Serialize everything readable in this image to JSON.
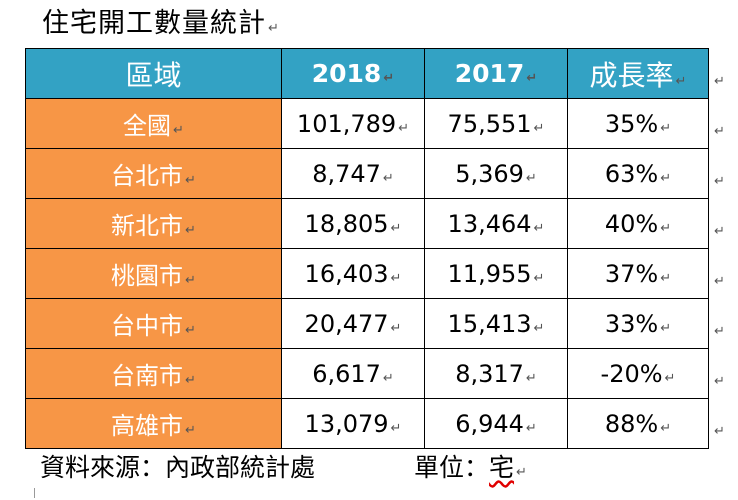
{
  "document": {
    "title": "住宅開工數量統計",
    "para_mark": "↵"
  },
  "table": {
    "headers": {
      "region": "區域",
      "y2018": "2018",
      "y2017": "2017",
      "growth": "成長率"
    },
    "rows": [
      {
        "region": "全國",
        "y2018": "101,789",
        "y2017": "75,551",
        "growth": "35%"
      },
      {
        "region": "台北市",
        "y2018": "8,747",
        "y2017": "5,369",
        "growth": "63%"
      },
      {
        "region": "新北市",
        "y2018": "18,805",
        "y2017": "13,464",
        "growth": "40%"
      },
      {
        "region": "桃園市",
        "y2018": "16,403",
        "y2017": "11,955",
        "growth": "37%"
      },
      {
        "region": "台中市",
        "y2018": "20,477",
        "y2017": "15,413",
        "growth": "33%"
      },
      {
        "region": "台南市",
        "y2018": "6,617",
        "y2017": "8,317",
        "growth": "-20%"
      },
      {
        "region": "高雄市",
        "y2018": "13,079",
        "y2017": "6,944",
        "growth": "88%"
      }
    ]
  },
  "footer": {
    "source": "資料來源：內政部統計處",
    "unit_label": "單位：",
    "unit_value": "宅"
  },
  "colors": {
    "header_bg": "#33a2c4",
    "region_bg": "#f79646",
    "header_text": "#ffffff"
  }
}
